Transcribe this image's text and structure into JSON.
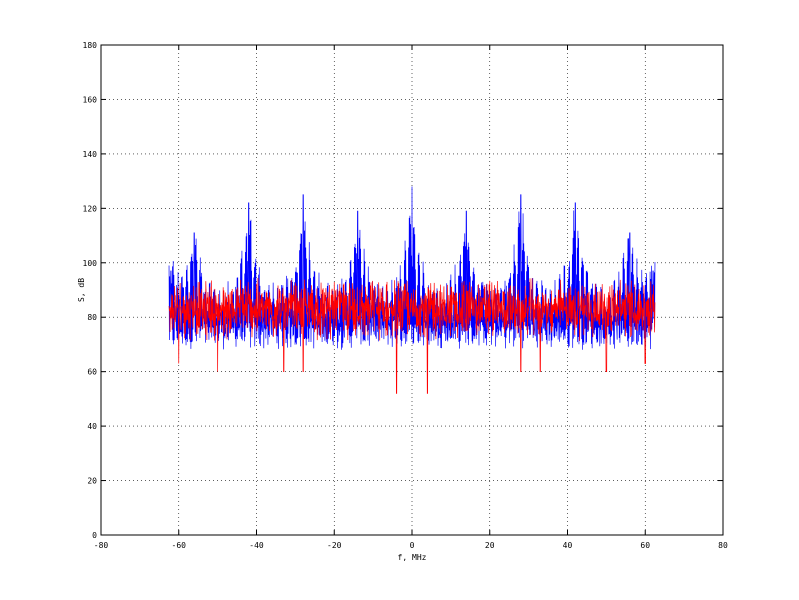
{
  "chart_data": {
    "type": "line",
    "xlabel": "f, MHz",
    "ylabel": "S, dB",
    "xlim": [
      -80,
      80
    ],
    "ylim": [
      0,
      180
    ],
    "xticks": [
      -80,
      -60,
      -40,
      -20,
      0,
      20,
      40,
      60,
      80
    ],
    "yticks": [
      0,
      20,
      40,
      60,
      80,
      100,
      120,
      140,
      160,
      180
    ],
    "grid": true,
    "x_range": [
      -62.5,
      62.5
    ],
    "series": [
      {
        "color": "#0000ff",
        "baseline": 78,
        "peaks": [
          {
            "x": -62,
            "y": 97
          },
          {
            "x": -56,
            "y": 111
          },
          {
            "x": -42,
            "y": 122
          },
          {
            "x": -28,
            "y": 125
          },
          {
            "x": -14,
            "y": 119
          },
          {
            "x": 0,
            "y": 128
          },
          {
            "x": 14,
            "y": 119
          },
          {
            "x": 28,
            "y": 125
          },
          {
            "x": 42,
            "y": 122
          },
          {
            "x": 56,
            "y": 111
          },
          {
            "x": 62,
            "y": 97
          }
        ]
      },
      {
        "color": "#ff0000",
        "baseline": 83,
        "dips": [
          {
            "x": -60,
            "y": 63
          },
          {
            "x": -50,
            "y": 60
          },
          {
            "x": -33,
            "y": 60
          },
          {
            "x": -28,
            "y": 60
          },
          {
            "x": -4,
            "y": 52
          },
          {
            "x": 4,
            "y": 52
          },
          {
            "x": 28,
            "y": 60
          },
          {
            "x": 33,
            "y": 60
          },
          {
            "x": 50,
            "y": 60
          },
          {
            "x": 60,
            "y": 63
          }
        ]
      }
    ]
  }
}
